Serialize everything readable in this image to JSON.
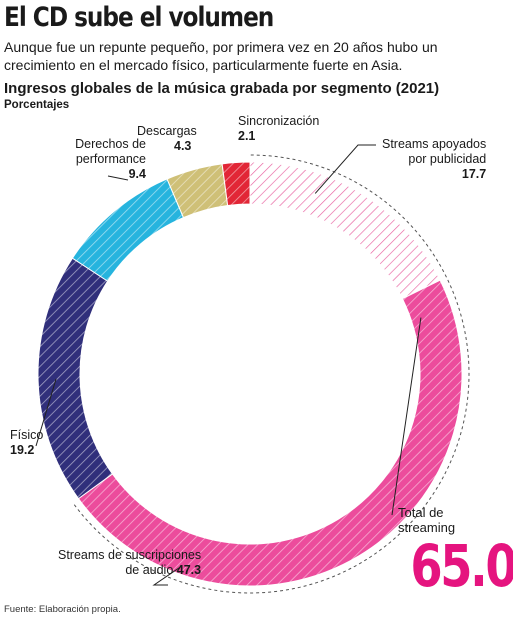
{
  "headline": "El CD sube el volumen",
  "deck": "Aunque fue un repunte pequeño, por primera vez en 20 años hubo un crecimiento en el mercado físico, particularmente fuerte en Asia.",
  "chart_data": {
    "type": "donut",
    "title": "Ingresos globales de la música grabada por segmento (2021)",
    "units": "Porcentajes",
    "slices": [
      {
        "name": "Streams apoyados por publicidad",
        "name_lines": [
          "Streams apoyados",
          "por publicidad"
        ],
        "value": 17.7,
        "value_text": "17.7",
        "color": "#f1a6c8",
        "pattern": "hatch-light"
      },
      {
        "name": "Streams de suscripciones de audio",
        "name_lines": [
          "Streams de suscripciones",
          "de audio"
        ],
        "value": 47.3,
        "value_text": "47.3",
        "color": "#ec4c9c",
        "pattern": "hatch"
      },
      {
        "name": "Físico",
        "name_lines": [
          "Físico"
        ],
        "value": 19.2,
        "value_text": "19.2",
        "color": "#302f7b",
        "pattern": "hatch"
      },
      {
        "name": "Derechos de performance",
        "name_lines": [
          "Derechos de",
          "performance"
        ],
        "value": 9.4,
        "value_text": "9.4",
        "color": "#26b4de",
        "pattern": "hatch"
      },
      {
        "name": "Descargas",
        "name_lines": [
          "Descargas"
        ],
        "value": 4.3,
        "value_text": "4.3",
        "color": "#cfc077",
        "pattern": "hatch"
      },
      {
        "name": "Sincronización",
        "name_lines": [
          "Sincronización"
        ],
        "value": 2.1,
        "value_text": "2.1",
        "color": "#e22636",
        "pattern": "hatch"
      }
    ],
    "total_streaming": {
      "label_lines": [
        "Total de",
        "streaming"
      ],
      "value": 65.0,
      "value_text": "65.0",
      "color": "#e5147f"
    }
  },
  "source": "Fuente: Elaboración propia."
}
